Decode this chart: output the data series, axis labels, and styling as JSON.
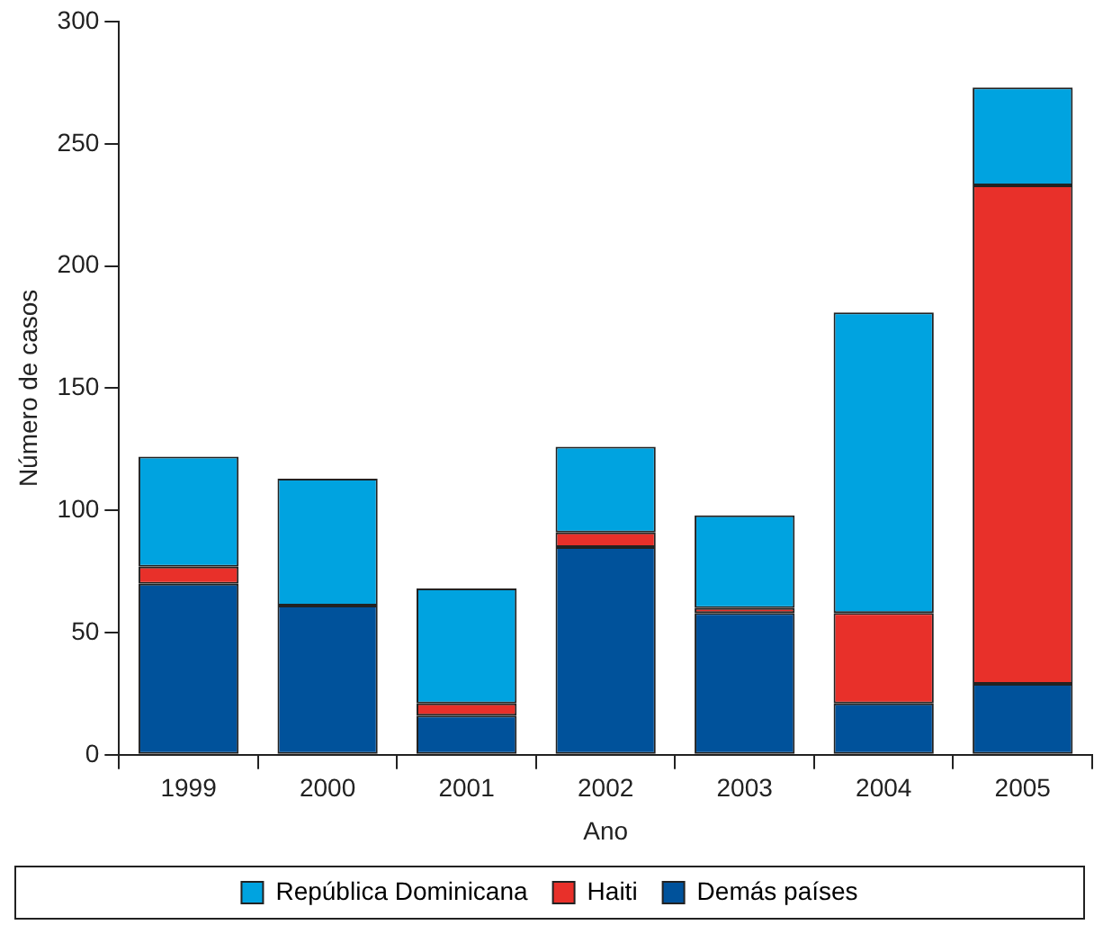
{
  "chart_data": {
    "type": "bar",
    "stacked": true,
    "xlabel": "Ano",
    "ylabel": "Número de casos",
    "categories": [
      "1999",
      "2000",
      "2001",
      "2002",
      "2003",
      "2004",
      "2005"
    ],
    "series": [
      {
        "name": "Demás países",
        "color": "#00529b",
        "values": [
          70,
          61,
          16,
          85,
          58,
          21,
          29
        ]
      },
      {
        "name": "Haiti",
        "color": "#e8302a",
        "values": [
          7,
          0,
          5,
          6,
          2,
          37,
          204
        ]
      },
      {
        "name": "República Dominicana",
        "color": "#00a3e0",
        "values": [
          45,
          52,
          47,
          35,
          38,
          123,
          40
        ]
      }
    ],
    "ylim": [
      0,
      300
    ],
    "yticks": [
      0,
      50,
      100,
      150,
      200,
      250,
      300
    ],
    "grid": false,
    "legend": "bottom"
  }
}
